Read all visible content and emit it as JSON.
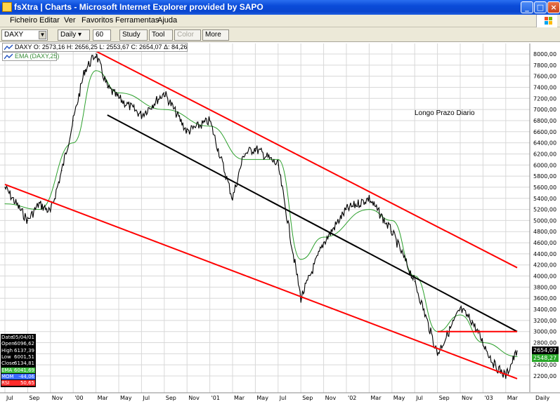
{
  "window": {
    "title": "fsXtra | Charts - Microsoft Internet Explorer provided by SAPO",
    "buttons": [
      "_",
      "□",
      "×"
    ]
  },
  "menu": [
    "Ficheiro",
    "Editar",
    "Ver",
    "Favoritos",
    "Ferramentas",
    "Ajuda"
  ],
  "toolbar": {
    "symbol": "DAXY",
    "period": "Daily ▾",
    "bars": "60",
    "study": "Study ▾",
    "tool": "Tool ▾",
    "color": "Color ▾",
    "more": "More ▾"
  },
  "legend": {
    "main": "DAXY O: 2573,16 H: 2656,25 L: 2553,67 C: 2654,07 Δ: 84,26",
    "ema": "EMA (DAXY,25)"
  },
  "annotation": "Longo Prazo Diario",
  "info": {
    "rows": [
      {
        "k": "Date",
        "v": "05/04/01",
        "color": "#ffffff"
      },
      {
        "k": "Open",
        "v": "6096,62",
        "color": "#ffffff"
      },
      {
        "k": "High",
        "v": "6137,39",
        "color": "#ffffff"
      },
      {
        "k": "Low",
        "v": "6001,51",
        "color": "#ffffff"
      },
      {
        "k": "Close",
        "v": "6134,81",
        "color": "#ffffff"
      },
      {
        "k": "EMA",
        "v": "6041,69",
        "color": "#3fbf3f"
      },
      {
        "k": "MOM",
        "v": "-44,06",
        "color": "#3a6bff"
      },
      {
        "k": "RSI",
        "v": "50,65",
        "color": "#ff2a2a"
      }
    ]
  },
  "price_tags": {
    "close": "2654,07",
    "ema": "2548,27"
  },
  "colors": {
    "price": "#000000",
    "ema": "#2ca02c",
    "channel": "#ff0000",
    "trend": "#000000",
    "grid": "#d8d8d8"
  },
  "chart_data": {
    "type": "line",
    "title": "",
    "series": [
      {
        "name": "DAXY",
        "x": [
          "Jul 99",
          "Sep 99",
          "Oct 99",
          "Nov 99",
          "Dec 99",
          "Jan 00",
          "Feb 00",
          "Mar 00",
          "Apr 00",
          "May 00",
          "Jul 00",
          "Sep 00",
          "Nov 00",
          "Jan 01",
          "Mar 01",
          "Apr 01",
          "May 01",
          "Jul 01",
          "Sep 01",
          "Nov 01",
          "Jan 02",
          "Mar 02",
          "Apr 02",
          "May 02",
          "Jul 02",
          "Sep 02",
          "Oct 02",
          "Nov 02",
          "Dec 02",
          "Jan 03",
          "Feb 03",
          "Mar 03",
          "Apr 03"
        ],
        "y": [
          5600,
          5000,
          5300,
          5150,
          5900,
          6800,
          7700,
          8000,
          7400,
          7200,
          6900,
          7300,
          6600,
          6800,
          5400,
          6200,
          6300,
          6000,
          3600,
          4600,
          5200,
          5400,
          5100,
          4800,
          3900,
          2600,
          3000,
          3400,
          3200,
          2800,
          2400,
          2200,
          2654
        ]
      },
      {
        "name": "EMA (DAXY,25)",
        "x": [
          "Jul 99",
          "Oct 99",
          "Jan 00",
          "Mar 00",
          "May 00",
          "Sep 00",
          "Jan 01",
          "Apr 01",
          "Jul 01",
          "Sep 01",
          "Nov 01",
          "Mar 02",
          "May 02",
          "Jul 02",
          "Sep 02",
          "Nov 02",
          "Jan 03",
          "Apr 03"
        ],
        "y": [
          5300,
          5200,
          6400,
          7700,
          7300,
          7000,
          6700,
          6100,
          6100,
          4300,
          4700,
          5200,
          5000,
          4000,
          3000,
          3300,
          2800,
          2548
        ]
      }
    ],
    "x_ticks": [
      "Jul",
      "Sep",
      "Nov",
      "'00",
      "Mar",
      "May",
      "Jul",
      "Sep",
      "Nov",
      "'01",
      "Mar",
      "May",
      "Jul",
      "Sep",
      "Nov",
      "'02",
      "Mar",
      "May",
      "Jul",
      "Sep",
      "Nov",
      "'03",
      "Mar",
      "Daily"
    ],
    "y_ticks": [
      "8000,00",
      "7800,00",
      "7600,00",
      "7400,00",
      "7200,00",
      "7000,00",
      "6800,00",
      "6600,00",
      "6400,00",
      "6200,00",
      "6000,00",
      "5800,00",
      "5600,00",
      "5400,00",
      "5200,00",
      "5000,00",
      "4800,00",
      "4600,00",
      "4400,00",
      "4200,00",
      "4000,00",
      "3800,00",
      "3600,00",
      "3400,00",
      "3200,00",
      "3000,00",
      "2800,00",
      "2600,00",
      "2400,00",
      "2200,00"
    ],
    "ylim": [
      2100,
      8100
    ],
    "grid": true,
    "trendlines": [
      {
        "name": "upper-channel",
        "color": "#ff0000",
        "from": [
          "Mar 00",
          8050
        ],
        "to": [
          "Apr 03",
          4150
        ]
      },
      {
        "name": "lower-channel",
        "color": "#ff0000",
        "from": [
          "Jul 99",
          5650
        ],
        "to": [
          "Apr 03",
          2150
        ]
      },
      {
        "name": "mid-trend",
        "color": "#000000",
        "from": [
          "Apr 00",
          6900
        ],
        "to": [
          "Apr 03",
          3000
        ]
      },
      {
        "name": "support-3000",
        "color": "#ff0000",
        "from": [
          "Sep 02",
          3000
        ],
        "to": [
          "Apr 03",
          3000
        ]
      }
    ]
  }
}
